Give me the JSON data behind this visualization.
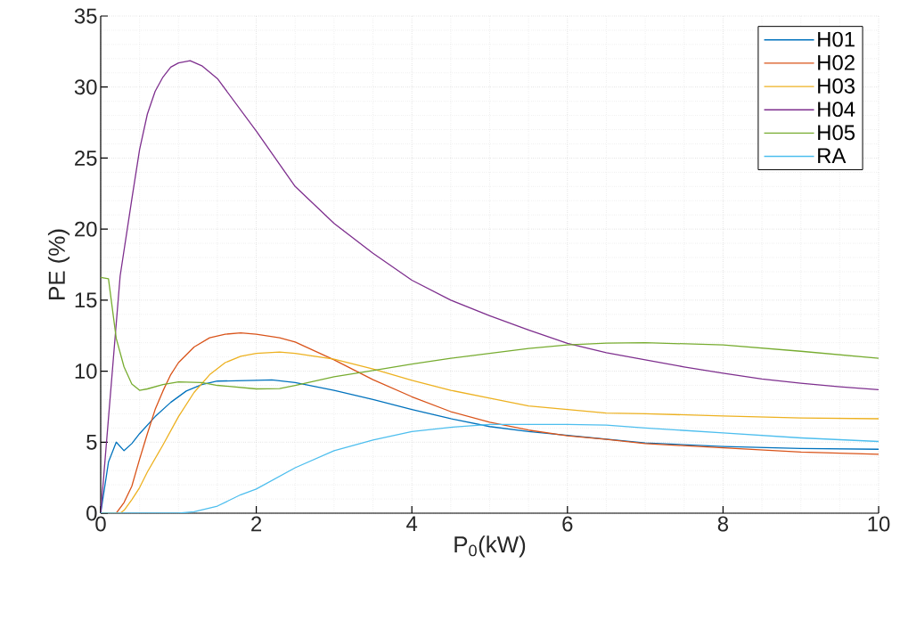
{
  "chart_data": {
    "type": "line",
    "xlabel": "P$_{0}$(kW)",
    "ylabel": "PE (%)",
    "xlim": [
      0,
      10
    ],
    "ylim": [
      0,
      35
    ],
    "xticks": [
      0,
      2,
      4,
      6,
      8,
      10
    ],
    "yticks": [
      0,
      5,
      10,
      15,
      20,
      25,
      30,
      35
    ],
    "grid": true,
    "legend": "top right",
    "series": [
      {
        "name": "H01",
        "color": "#0072bd",
        "x": [
          0,
          0.1,
          0.2,
          0.3,
          0.4,
          0.5,
          0.7,
          0.9,
          1.1,
          1.3,
          1.5,
          2,
          2.2,
          2.5,
          3,
          3.5,
          4,
          4.5,
          5,
          5.5,
          7,
          8,
          9,
          10
        ],
        "values": [
          0,
          3.6,
          5.0,
          4.4,
          4.9,
          5.6,
          6.8,
          7.8,
          8.6,
          9.05,
          9.3,
          9.35,
          9.38,
          9.2,
          8.65,
          8.0,
          7.3,
          6.65,
          6.1,
          5.75,
          4.95,
          4.7,
          4.55,
          4.5
        ]
      },
      {
        "name": "H02",
        "color": "#d95319",
        "x": [
          0,
          0.2,
          0.3,
          0.4,
          0.5,
          0.6,
          0.7,
          0.8,
          0.9,
          1,
          1.2,
          1.4,
          1.6,
          1.8,
          2,
          2.3,
          2.5,
          3,
          3.5,
          4,
          4.5,
          5,
          5.5,
          6,
          6.5,
          7,
          8,
          9,
          10
        ],
        "values": [
          0,
          0,
          0.75,
          1.9,
          3.8,
          5.6,
          7.3,
          8.6,
          9.75,
          10.6,
          11.7,
          12.35,
          12.6,
          12.7,
          12.6,
          12.35,
          12.05,
          10.8,
          9.4,
          8.2,
          7.15,
          6.4,
          5.85,
          5.45,
          5.2,
          4.9,
          4.6,
          4.3,
          4.15
        ]
      },
      {
        "name": "H03",
        "color": "#edb120",
        "x": [
          0,
          0.25,
          0.3,
          0.4,
          0.5,
          0.6,
          0.8,
          1,
          1.2,
          1.4,
          1.6,
          1.8,
          2,
          2.3,
          2.5,
          3,
          3.5,
          4,
          4.5,
          5,
          5.5,
          6,
          6.5,
          7,
          8,
          9,
          10
        ],
        "values": [
          0,
          0,
          0.2,
          0.95,
          1.8,
          2.9,
          4.8,
          6.8,
          8.5,
          9.75,
          10.6,
          11.05,
          11.25,
          11.35,
          11.25,
          10.85,
          10.15,
          9.35,
          8.65,
          8.1,
          7.55,
          7.3,
          7.05,
          7.0,
          6.85,
          6.7,
          6.65
        ]
      },
      {
        "name": "H04",
        "color": "#7e2f8e",
        "x": [
          0,
          0.25,
          0.4,
          0.5,
          0.6,
          0.7,
          0.8,
          0.9,
          1,
          1.15,
          1.3,
          1.5,
          2,
          2.5,
          3,
          3.5,
          4,
          4.5,
          5,
          5.5,
          6,
          6.5,
          7,
          7.5,
          8,
          8.5,
          9,
          9.5,
          10
        ],
        "values": [
          0,
          16.7,
          22.1,
          25.6,
          28.1,
          29.7,
          30.7,
          31.4,
          31.7,
          31.85,
          31.5,
          30.6,
          26.9,
          23.0,
          20.4,
          18.3,
          16.4,
          15.0,
          13.9,
          12.9,
          11.95,
          11.3,
          10.8,
          10.3,
          9.85,
          9.45,
          9.15,
          8.9,
          8.7
        ]
      },
      {
        "name": "H05",
        "color": "#77ac30",
        "x": [
          0,
          0.1,
          0.2,
          0.3,
          0.4,
          0.5,
          0.6,
          0.8,
          1,
          1.3,
          1.5,
          2,
          2.3,
          2.5,
          3,
          3.5,
          4,
          4.5,
          5,
          5.5,
          6,
          6.5,
          7,
          8,
          9,
          10
        ],
        "values": [
          16.6,
          16.5,
          12.3,
          10.3,
          9.1,
          8.65,
          8.75,
          9.05,
          9.25,
          9.2,
          9.0,
          8.75,
          8.77,
          9.0,
          9.6,
          10.05,
          10.5,
          10.9,
          11.25,
          11.6,
          11.85,
          11.97,
          12.0,
          11.85,
          11.4,
          10.9
        ]
      },
      {
        "name": "RA",
        "color": "#4dbeee",
        "x": [
          0,
          1.0,
          1.2,
          1.5,
          1.8,
          2,
          2.5,
          3,
          3.5,
          4,
          4.5,
          5,
          5.5,
          6,
          6.5,
          7,
          8,
          9,
          10
        ],
        "values": [
          0,
          0,
          0.1,
          0.5,
          1.3,
          1.7,
          3.2,
          4.4,
          5.15,
          5.75,
          6.05,
          6.25,
          6.25,
          6.25,
          6.2,
          6.0,
          5.65,
          5.3,
          5.05
        ]
      }
    ]
  }
}
